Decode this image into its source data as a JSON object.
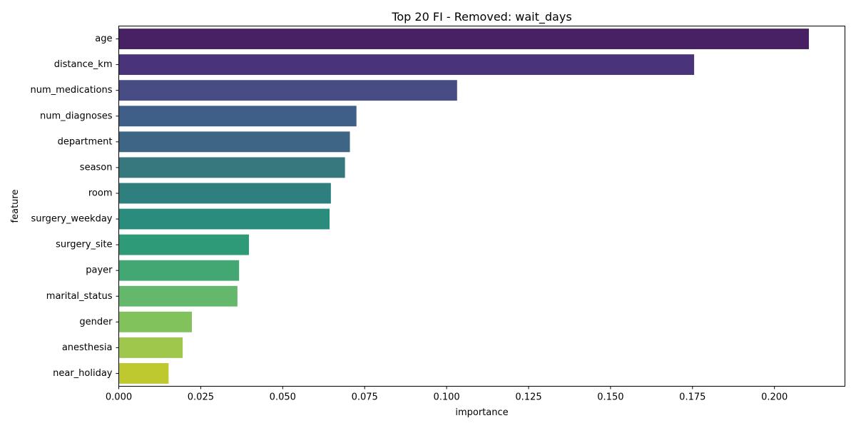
{
  "chart_data": {
    "type": "bar",
    "orientation": "horizontal",
    "title": "Top 20 FI - Removed: wait_days",
    "xlabel": "importance",
    "ylabel": "feature",
    "xlim": [
      0,
      0.2215
    ],
    "xticks": [
      0.0,
      0.025,
      0.05,
      0.075,
      0.1,
      0.125,
      0.15,
      0.175,
      0.2
    ],
    "xtick_labels": [
      "0.000",
      "0.025",
      "0.050",
      "0.075",
      "0.100",
      "0.125",
      "0.150",
      "0.175",
      "0.200"
    ],
    "grid": false,
    "categories": [
      "age",
      "distance_km",
      "num_medications",
      "num_diagnoses",
      "department",
      "season",
      "room",
      "surgery_weekday",
      "surgery_site",
      "payer",
      "marital_status",
      "gender",
      "anesthesia",
      "near_holiday"
    ],
    "values": [
      0.2105,
      0.1755,
      0.1032,
      0.0725,
      0.0705,
      0.069,
      0.0647,
      0.0643,
      0.0397,
      0.0367,
      0.0362,
      0.0223,
      0.0195,
      0.0152
    ],
    "colors": [
      "#472163",
      "#49337a",
      "#474d84",
      "#3f5f88",
      "#3e6684",
      "#36787e",
      "#2f7f7f",
      "#2a8c7c",
      "#2f9a77",
      "#42a772",
      "#64b86c",
      "#82c25c",
      "#9fc74b",
      "#bec92f"
    ]
  }
}
